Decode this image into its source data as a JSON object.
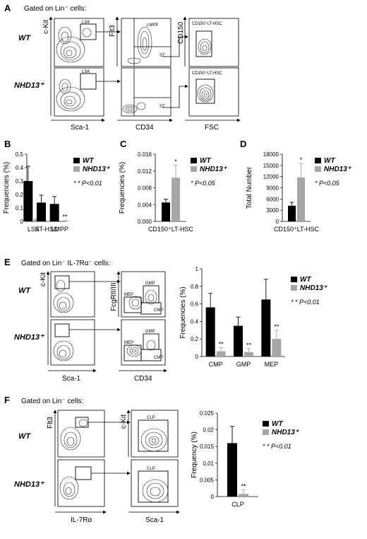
{
  "panels": [
    {
      "id": "A",
      "label": "A",
      "gated": "Gated on Lin⁻ cells:",
      "genotypes": [
        "WT",
        "NHD13⁺"
      ],
      "axes": [
        "c-Kit",
        "Sca-1",
        "Flt3",
        "CD34",
        "CD150",
        "FSC"
      ],
      "gates": [
        "LSK",
        "LSK",
        "LMPP",
        "ST",
        "CD150⁺LT-HSC",
        "CD150⁺LT-HSC"
      ],
      "ticks": [
        "10²",
        "10³",
        "10⁴",
        "10⁵"
      ]
    },
    {
      "id": "E",
      "label": "E",
      "gated": "Gated on Lin⁻ IL-7Rα⁻ cells:",
      "genotypes": [
        "WT",
        "NHD13⁺"
      ],
      "axes": [
        "c-Kit",
        "Sca-1",
        "FcgRII/III",
        "CD34"
      ],
      "gates": [
        "GMP",
        "MEP",
        "CMP",
        "GMP",
        "MEP",
        "CMP"
      ]
    },
    {
      "id": "F",
      "label": "F",
      "gated": "Gated on Lin⁻ cells:",
      "genotypes": [
        "WT",
        "NHD13⁺"
      ],
      "axes": [
        "Flt3",
        "IL-7Rα",
        "c-Kit",
        "Sca-1"
      ],
      "gates": [
        "CLP",
        "CLP"
      ]
    }
  ],
  "chart_data": [
    {
      "id": "B",
      "label": "B",
      "type": "bar",
      "categories": [
        "LSK",
        "ST-HSC",
        "LMPP"
      ],
      "series": [
        {
          "name": "WT",
          "values": [
            0.3,
            0.14,
            0.13
          ],
          "errors": [
            0.11,
            0.055,
            0.055
          ]
        },
        {
          "name": "NHD13⁺",
          "values": [
            0.02,
            0.004,
            0.004
          ],
          "errors": [
            0.01,
            0.003,
            0.003
          ]
        }
      ],
      "ylabel": "Frequencies (%)",
      "ylim": [
        0,
        0.5
      ],
      "yticks": [
        "0",
        "0.1",
        "0.2",
        "0.3",
        "0.4",
        "0.5"
      ],
      "stars": [
        "**",
        "**",
        "**"
      ],
      "note": "* * P<0.01",
      "legend": "top-right"
    },
    {
      "id": "C",
      "label": "C",
      "type": "bar",
      "categories": [
        "CD150⁺LT-HSC"
      ],
      "series": [
        {
          "name": "WT",
          "values": [
            0.0045
          ],
          "errors": [
            0.0008
          ]
        },
        {
          "name": "NHD13⁺",
          "values": [
            0.0104
          ],
          "errors": [
            0.003
          ]
        }
      ],
      "ylabel": "Frequencies (%)",
      "ylim": [
        0,
        0.016
      ],
      "yticks": [
        "0.000",
        "0.004",
        "0.008",
        "0.012",
        "0.016"
      ],
      "stars": [
        "*"
      ],
      "note": "* P<0.05",
      "legend": "top-right"
    },
    {
      "id": "D",
      "label": "D",
      "type": "bar",
      "categories": [
        "CD150⁺LT-HSC"
      ],
      "series": [
        {
          "name": "WT",
          "values": [
            4200
          ],
          "errors": [
            900
          ]
        },
        {
          "name": "NHD13⁺",
          "values": [
            11800
          ],
          "errors": [
            3700
          ]
        }
      ],
      "ylabel": "Total Number",
      "ylim": [
        0,
        18000
      ],
      "yticks": [
        "0",
        "3000",
        "6000",
        "9000",
        "12000",
        "15000",
        "18000"
      ],
      "stars": [
        "*"
      ],
      "note": "* P<0.05",
      "legend": "top-right"
    },
    {
      "id": "E2",
      "type": "bar",
      "categories": [
        "CMP",
        "GMP",
        "MEP"
      ],
      "series": [
        {
          "name": "WT",
          "values": [
            0.56,
            0.35,
            0.65
          ],
          "errors": [
            0.16,
            0.1,
            0.23
          ]
        },
        {
          "name": "NHD13⁺",
          "values": [
            0.06,
            0.05,
            0.2
          ],
          "errors": [
            0.04,
            0.04,
            0.1
          ]
        }
      ],
      "ylabel": "Frequencies (%)",
      "ylim": [
        0,
        1
      ],
      "yticks": [
        "0",
        "0.2",
        "0.4",
        "0.6",
        "0.8",
        "1"
      ],
      "stars": [
        "**",
        "**",
        "**"
      ],
      "note": "* * P<0.01",
      "legend": "top-right"
    },
    {
      "id": "F2",
      "type": "bar",
      "categories": [
        "CLP"
      ],
      "series": [
        {
          "name": "WT",
          "values": [
            0.016
          ],
          "errors": [
            0.005
          ]
        },
        {
          "name": "NHD13⁺",
          "values": [
            0.0008
          ],
          "errors": [
            0.0012
          ]
        }
      ],
      "ylabel": "Frequency (%)",
      "ylim": [
        0,
        0.025
      ],
      "yticks": [
        "0",
        "0.005",
        "0.01",
        "0.015",
        "0.02",
        "0.025"
      ],
      "stars": [
        "**"
      ],
      "note": "* * P<0.01",
      "legend": "top-right"
    }
  ],
  "colors": {
    "wt": "#000000",
    "nhd13": "#a6a6a6",
    "contour": "#222222"
  }
}
